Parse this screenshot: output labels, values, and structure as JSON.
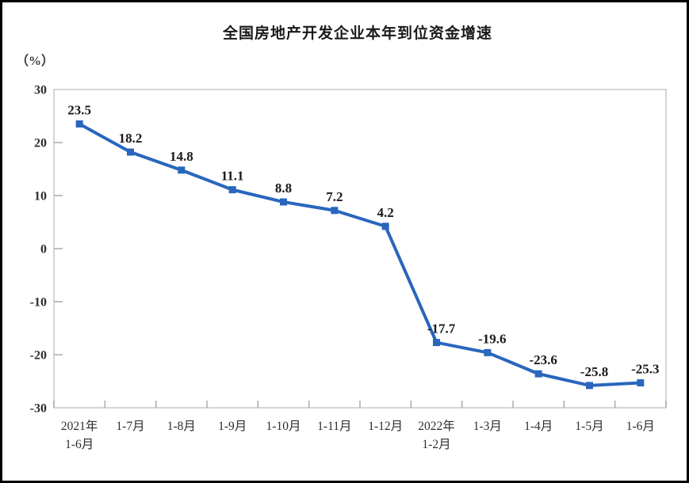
{
  "chart_data": {
    "type": "line",
    "title": "全国房地产开发企业本年到位资金增速",
    "unit_label": "（%）",
    "categories": [
      [
        "2021年",
        "1-6月"
      ],
      [
        "1-7月"
      ],
      [
        "1-8月"
      ],
      [
        "1-9月"
      ],
      [
        "1-10月"
      ],
      [
        "1-11月"
      ],
      [
        "1-12月"
      ],
      [
        "2022年",
        "1-2月"
      ],
      [
        "1-3月"
      ],
      [
        "1-4月"
      ],
      [
        "1-5月"
      ],
      [
        "1-6月"
      ]
    ],
    "values": [
      23.5,
      18.2,
      14.8,
      11.1,
      8.8,
      7.2,
      4.2,
      -17.7,
      -19.6,
      -23.6,
      -25.8,
      -25.3
    ],
    "data_labels": [
      "23.5",
      "18.2",
      "14.8",
      "11.1",
      "8.8",
      "7.2",
      "4.2",
      "-17.7",
      "-19.6",
      "-23.6",
      "-25.8",
      "-25.3"
    ],
    "yticks": [
      30,
      20,
      10,
      0,
      -10,
      -20,
      -30
    ],
    "ylim": [
      -30,
      30
    ],
    "xlabel": "",
    "ylabel": "（%）",
    "grid": false,
    "legend": "none",
    "marker": "square",
    "colors": {
      "line": "#2a66bd",
      "marker": "#2a66bd",
      "plot_border": "#c9c9c9",
      "tick": "#ababab",
      "axis_text": "#2e2e2e",
      "title_text": "#1a1a1a",
      "background": "#ffffff",
      "frame_border": "#000000"
    }
  }
}
